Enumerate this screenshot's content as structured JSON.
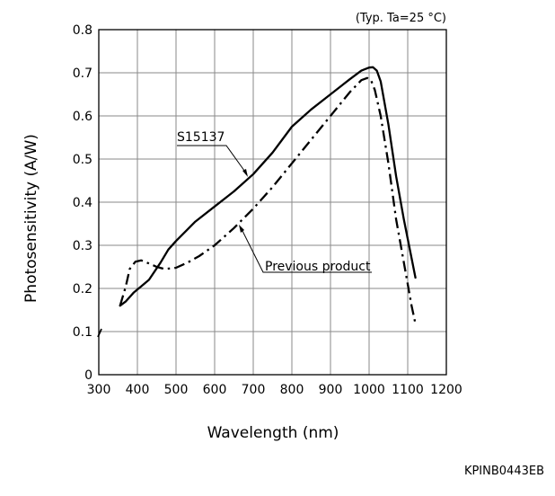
{
  "chart_data": {
    "type": "line",
    "title": "",
    "condition_note": "(Typ. Ta=25 °C)",
    "xlabel": "Wavelength (nm)",
    "ylabel": "Photosensitivity (A/W)",
    "xlim": [
      300,
      1200
    ],
    "ylim": [
      0,
      0.8
    ],
    "xticks": [
      "300",
      "400",
      "500",
      "600",
      "700",
      "800",
      "900",
      "1000",
      "1100",
      "1200"
    ],
    "yticks": [
      "0",
      "0.1",
      "0.2",
      "0.3",
      "0.4",
      "0.5",
      "0.6",
      "0.7",
      "0.8"
    ],
    "grid": true,
    "series": [
      {
        "name": "S15137",
        "style": "solid",
        "x": [
          355,
          370,
          390,
          410,
          430,
          460,
          480,
          500,
          550,
          600,
          650,
          700,
          750,
          800,
          850,
          900,
          950,
          980,
          1000,
          1010,
          1020,
          1030,
          1050,
          1070,
          1090,
          1110,
          1120
        ],
        "y": [
          0.16,
          0.17,
          0.19,
          0.205,
          0.22,
          0.26,
          0.29,
          0.31,
          0.355,
          0.39,
          0.425,
          0.465,
          0.515,
          0.575,
          0.615,
          0.65,
          0.685,
          0.705,
          0.712,
          0.713,
          0.705,
          0.68,
          0.58,
          0.46,
          0.36,
          0.27,
          0.225
        ]
      },
      {
        "name": "Previous product",
        "style": "dash-dot",
        "x": [
          355,
          370,
          380,
          395,
          410,
          430,
          450,
          470,
          500,
          530,
          560,
          600,
          650,
          700,
          750,
          800,
          850,
          900,
          950,
          980,
          995,
          1005,
          1015,
          1030,
          1050,
          1070,
          1090,
          1110,
          1120
        ],
        "y": [
          0.16,
          0.205,
          0.245,
          0.262,
          0.265,
          0.258,
          0.25,
          0.245,
          0.248,
          0.26,
          0.275,
          0.3,
          0.34,
          0.385,
          0.435,
          0.49,
          0.545,
          0.6,
          0.655,
          0.683,
          0.688,
          0.683,
          0.66,
          0.6,
          0.49,
          0.36,
          0.26,
          0.16,
          0.118
        ]
      }
    ],
    "annotations": [
      {
        "text": "S15137",
        "series": "S15137"
      },
      {
        "text": "Previous product",
        "series": "Previous product"
      }
    ]
  },
  "figure_code": "KPINB0443EB"
}
